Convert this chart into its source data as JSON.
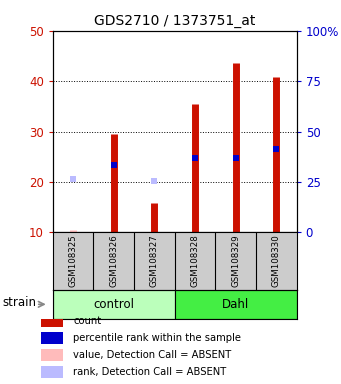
{
  "title": "GDS2710 / 1373751_at",
  "samples": [
    "GSM108325",
    "GSM108326",
    "GSM108327",
    "GSM108328",
    "GSM108329",
    "GSM108330"
  ],
  "group_extents": [
    {
      "start": 0,
      "end": 3,
      "name": "control",
      "color": "#bbffbb"
    },
    {
      "start": 3,
      "end": 6,
      "name": "Dahl",
      "color": "#44ee44"
    }
  ],
  "bar_values": [
    10.5,
    29.5,
    15.8,
    35.5,
    43.5,
    40.8
  ],
  "bar_absent": [
    true,
    false,
    false,
    false,
    false,
    false
  ],
  "rank_values": [
    20.5,
    23.3,
    20.2,
    24.8,
    24.8,
    26.5
  ],
  "rank_absent": [
    true,
    false,
    true,
    false,
    false,
    false
  ],
  "ylim_left": [
    10,
    50
  ],
  "ylim_right": [
    0,
    100
  ],
  "yticks_left": [
    10,
    20,
    30,
    40,
    50
  ],
  "yticks_right": [
    0,
    25,
    50,
    75,
    100
  ],
  "ytick_labels_right": [
    "0",
    "25",
    "50",
    "75",
    "100%"
  ],
  "bar_color_present": "#cc1100",
  "bar_color_absent": "#ffbbbb",
  "rank_color_present": "#0000cc",
  "rank_color_absent": "#bbbbff",
  "legend_items": [
    {
      "label": "count",
      "color": "#cc1100"
    },
    {
      "label": "percentile rank within the sample",
      "color": "#0000cc"
    },
    {
      "label": "value, Detection Call = ABSENT",
      "color": "#ffbbbb"
    },
    {
      "label": "rank, Detection Call = ABSENT",
      "color": "#bbbbff"
    }
  ],
  "strain_label": "strain",
  "left_tick_color": "#cc1100",
  "right_tick_color": "#0000cc",
  "sample_box_color": "#cccccc",
  "bar_linewidth": 5
}
